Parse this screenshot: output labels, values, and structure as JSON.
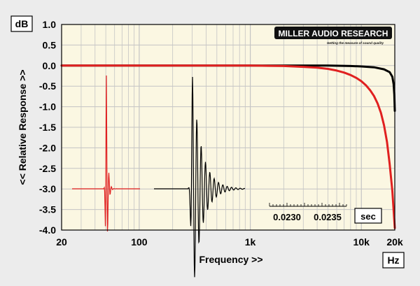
{
  "chart_data": {
    "type": "line",
    "ylabel": "<< Relative Response >>",
    "xlabel": "Frequency >>",
    "y_unit": "dB",
    "x_unit": "Hz",
    "x_scale": "log",
    "xlim": [
      20,
      20000
    ],
    "ylim": [
      -4.0,
      1.0
    ],
    "y_ticks": [
      "1.0",
      "0.5",
      "0.0",
      "-0.5",
      "-1.0",
      "-1.5",
      "-2.0",
      "-2.5",
      "-3.0",
      "-3.5",
      "-4.0"
    ],
    "x_ticks": [
      {
        "value": 20,
        "label": "20"
      },
      {
        "value": 100,
        "label": "100"
      },
      {
        "value": 1000,
        "label": "1k"
      },
      {
        "value": 10000,
        "label": "10k"
      },
      {
        "value": 20000,
        "label": "20k"
      }
    ],
    "grid": true,
    "series": [
      {
        "color": "#000000",
        "x": [
          20,
          1000,
          5000,
          8000,
          10000,
          13000,
          16000,
          18000,
          19000,
          19500,
          19800,
          20000
        ],
        "y": [
          0.0,
          0.0,
          0.0,
          -0.01,
          -0.02,
          -0.04,
          -0.09,
          -0.16,
          -0.27,
          -0.45,
          -0.7,
          -1.1
        ]
      },
      {
        "color": "#e02020",
        "x": [
          20,
          1000,
          2000,
          3000,
          4000,
          5000,
          6000,
          7000,
          8000,
          9000,
          10000,
          11000,
          12000,
          13000,
          14000,
          15000,
          16000,
          17000,
          18000,
          19000,
          20000
        ],
        "y": [
          0.0,
          0.0,
          -0.01,
          -0.03,
          -0.05,
          -0.08,
          -0.12,
          -0.17,
          -0.23,
          -0.3,
          -0.38,
          -0.48,
          -0.6,
          -0.74,
          -0.92,
          -1.15,
          -1.45,
          -1.85,
          -2.4,
          -3.05,
          -3.95
        ]
      }
    ],
    "inset": {
      "label": "sec",
      "time_ticks": [
        "0.0230",
        "0.0235"
      ]
    }
  },
  "branding": {
    "logo_main": "MILLER AUDIO RESEARCH",
    "logo_tagline": "Getting the measure of sound quality"
  },
  "colors": {
    "background": "#ececec",
    "plot_fill": "#fbf7e2",
    "grid": "#c4c4c4",
    "black_trace": "#000000",
    "red_trace": "#e02020"
  }
}
